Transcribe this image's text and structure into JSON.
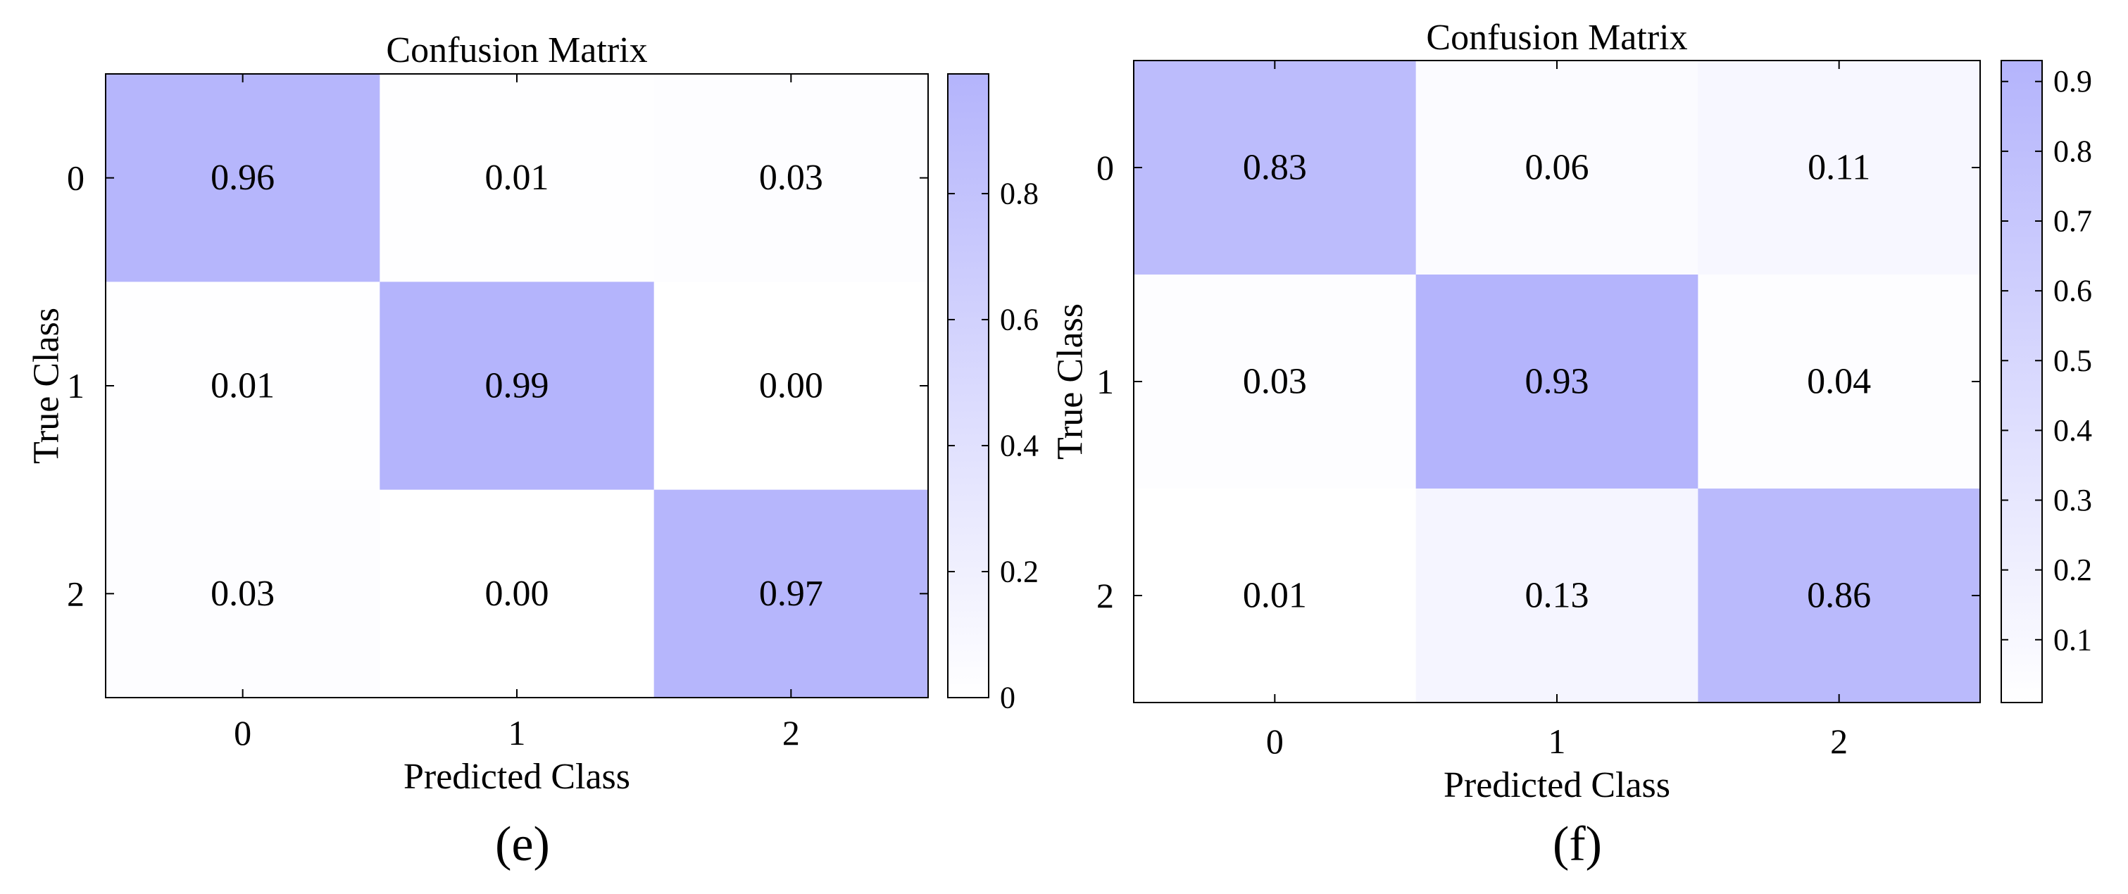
{
  "chart_data": [
    {
      "type": "heatmap",
      "panel_label": "(e)",
      "title": "Confusion Matrix",
      "xlabel": "Predicted Class",
      "ylabel": "True Class",
      "x_categories": [
        "0",
        "1",
        "2"
      ],
      "y_categories": [
        "0",
        "1",
        "2"
      ],
      "matrix": [
        [
          0.96,
          0.01,
          0.03
        ],
        [
          0.01,
          0.99,
          0.0
        ],
        [
          0.03,
          0.0,
          0.97
        ]
      ],
      "cell_labels": [
        [
          "0.96",
          "0.01",
          "0.03"
        ],
        [
          "0.01",
          "0.99",
          "0.00"
        ],
        [
          "0.03",
          "0.00",
          "0.97"
        ]
      ],
      "colorbar": {
        "min": 0,
        "max": 0.99,
        "ticks": [
          0,
          0.2,
          0.4,
          0.6,
          0.8
        ],
        "tick_labels": [
          "0",
          "0.2",
          "0.4",
          "0.6",
          "0.8"
        ],
        "low_color": "#ffffff",
        "high_color": "#b4b4fc"
      }
    },
    {
      "type": "heatmap",
      "panel_label": "(f)",
      "title": "Confusion Matrix",
      "xlabel": "Predicted Class",
      "ylabel": "True Class",
      "x_categories": [
        "0",
        "1",
        "2"
      ],
      "y_categories": [
        "0",
        "1",
        "2"
      ],
      "matrix": [
        [
          0.83,
          0.06,
          0.11
        ],
        [
          0.03,
          0.93,
          0.04
        ],
        [
          0.01,
          0.13,
          0.86
        ]
      ],
      "cell_labels": [
        [
          "0.83",
          "0.06",
          "0.11"
        ],
        [
          "0.03",
          "0.93",
          "0.04"
        ],
        [
          "0.01",
          "0.13",
          "0.86"
        ]
      ],
      "colorbar": {
        "min": 0.01,
        "max": 0.93,
        "ticks": [
          0.1,
          0.2,
          0.3,
          0.4,
          0.5,
          0.6,
          0.7,
          0.8,
          0.9
        ],
        "tick_labels": [
          "0.1",
          "0.2",
          "0.3",
          "0.4",
          "0.5",
          "0.6",
          "0.7",
          "0.8",
          "0.9"
        ],
        "low_color": "#ffffff",
        "high_color": "#b4b4fc"
      }
    }
  ]
}
